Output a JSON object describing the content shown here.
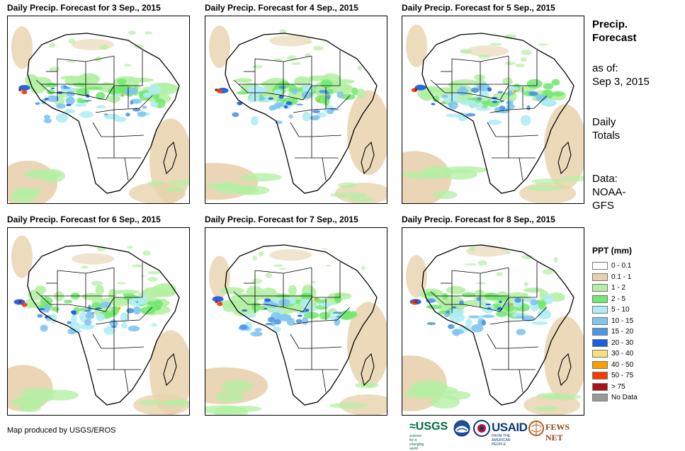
{
  "panels": [
    {
      "title": "Daily Precip. Forecast for 3 Sep., 2015"
    },
    {
      "title": "Daily Precip. Forecast for 4 Sep., 2015"
    },
    {
      "title": "Daily Precip. Forecast for 5 Sep., 2015"
    },
    {
      "title": "Daily Precip. Forecast for 6 Sep., 2015"
    },
    {
      "title": "Daily Precip. Forecast for 7 Sep., 2015"
    },
    {
      "title": "Daily Precip. Forecast for 8 Sep., 2015"
    }
  ],
  "side": {
    "heading_line1": "Precip.",
    "heading_line2": "Forecast",
    "asof_line1": "as of:",
    "asof_line2": "Sep 3, 2015",
    "totals_line1": "Daily",
    "totals_line2": "Totals",
    "data_line1": "Data:",
    "data_line2": "NOAA-",
    "data_line3": "GFS"
  },
  "legend": {
    "title": "PPT (mm)",
    "items": [
      {
        "label": "0 - 0.1",
        "color": "#ffffff"
      },
      {
        "label": "0.1 - 1",
        "color": "#e8d2ae"
      },
      {
        "label": "1 - 2",
        "color": "#b4f0a4"
      },
      {
        "label": "2 - 5",
        "color": "#6ee86e"
      },
      {
        "label": "5 - 10",
        "color": "#b0ecf5"
      },
      {
        "label": "10 - 15",
        "color": "#80c4f0"
      },
      {
        "label": "15 - 20",
        "color": "#4c96e8"
      },
      {
        "label": "20 - 30",
        "color": "#1a5ee0"
      },
      {
        "label": "30 - 40",
        "color": "#f8e07c"
      },
      {
        "label": "40 - 50",
        "color": "#f5a000"
      },
      {
        "label": "50 - 75",
        "color": "#f53c00"
      },
      {
        "label": "> 75",
        "color": "#a81414"
      },
      {
        "label": "No Data",
        "color": "#999999"
      }
    ]
  },
  "footer": {
    "credit": "Map produced by USGS/EROS"
  },
  "logos": {
    "usgs": "≈USGS",
    "usgs_tagline": "science for a changing world",
    "usaid": "USAID",
    "usaid_tagline": "FROM THE AMERICAN PEOPLE",
    "fewsnet": "FEWS NET"
  }
}
